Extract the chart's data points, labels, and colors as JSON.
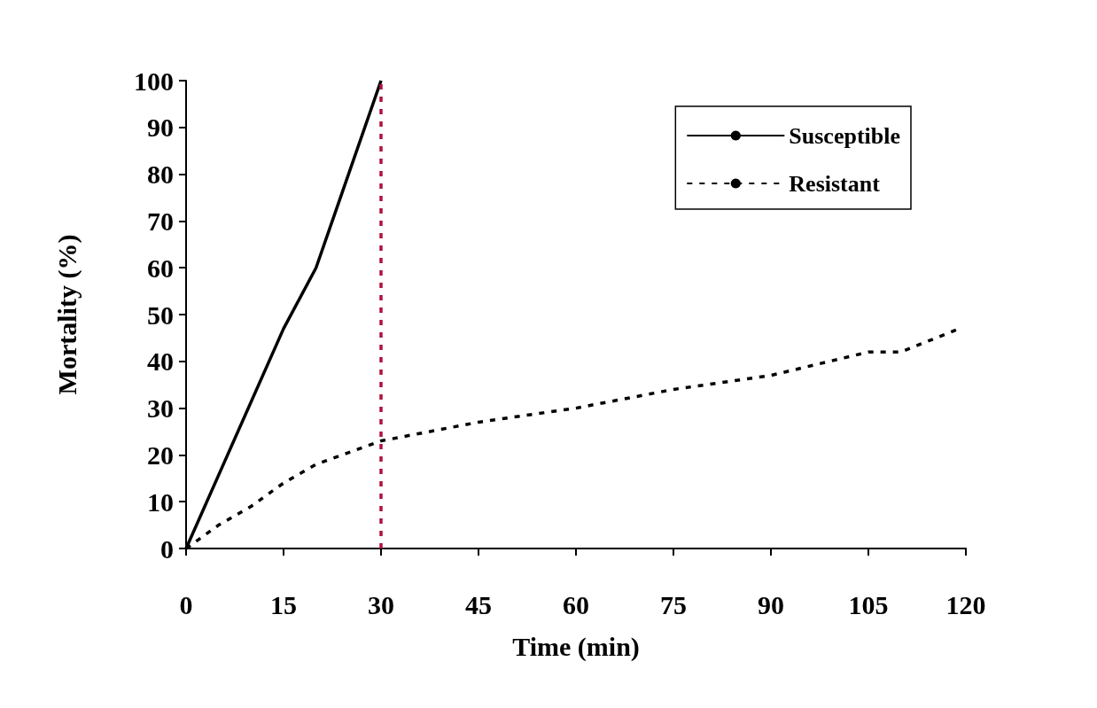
{
  "chart_data": {
    "type": "line",
    "xlabel": "Time (min)",
    "ylabel": "Mortality (%)",
    "x": [
      0,
      15,
      20,
      23,
      30
    ],
    "series": [
      {
        "name": "Susceptible",
        "color": "#000000",
        "line_style": "solid",
        "values": [
          0,
          47,
          60,
          72,
          100
        ]
      },
      {
        "name": "Resistant",
        "color": "#000000",
        "line_style": "dashed",
        "x": [
          0,
          5,
          10,
          15,
          20,
          30,
          45,
          55,
          60,
          75,
          85,
          90,
          105,
          110,
          119
        ],
        "values": [
          0,
          5,
          9,
          14,
          18,
          23,
          27,
          29,
          30,
          34,
          36,
          37,
          42,
          42,
          47
        ]
      }
    ],
    "xlim": [
      0,
      120
    ],
    "xticks": [
      0,
      15,
      30,
      45,
      60,
      75,
      90,
      105,
      120
    ],
    "ylim": [
      0,
      100
    ],
    "yticks": [
      0,
      10,
      20,
      30,
      40,
      50,
      60,
      70,
      80,
      90,
      100
    ],
    "ref_lines": [
      {
        "axis": "x",
        "value": 30,
        "color": "#b0123f",
        "line_style": "dashed"
      }
    ],
    "grid": false,
    "legend": "top right",
    "marker": "none"
  }
}
